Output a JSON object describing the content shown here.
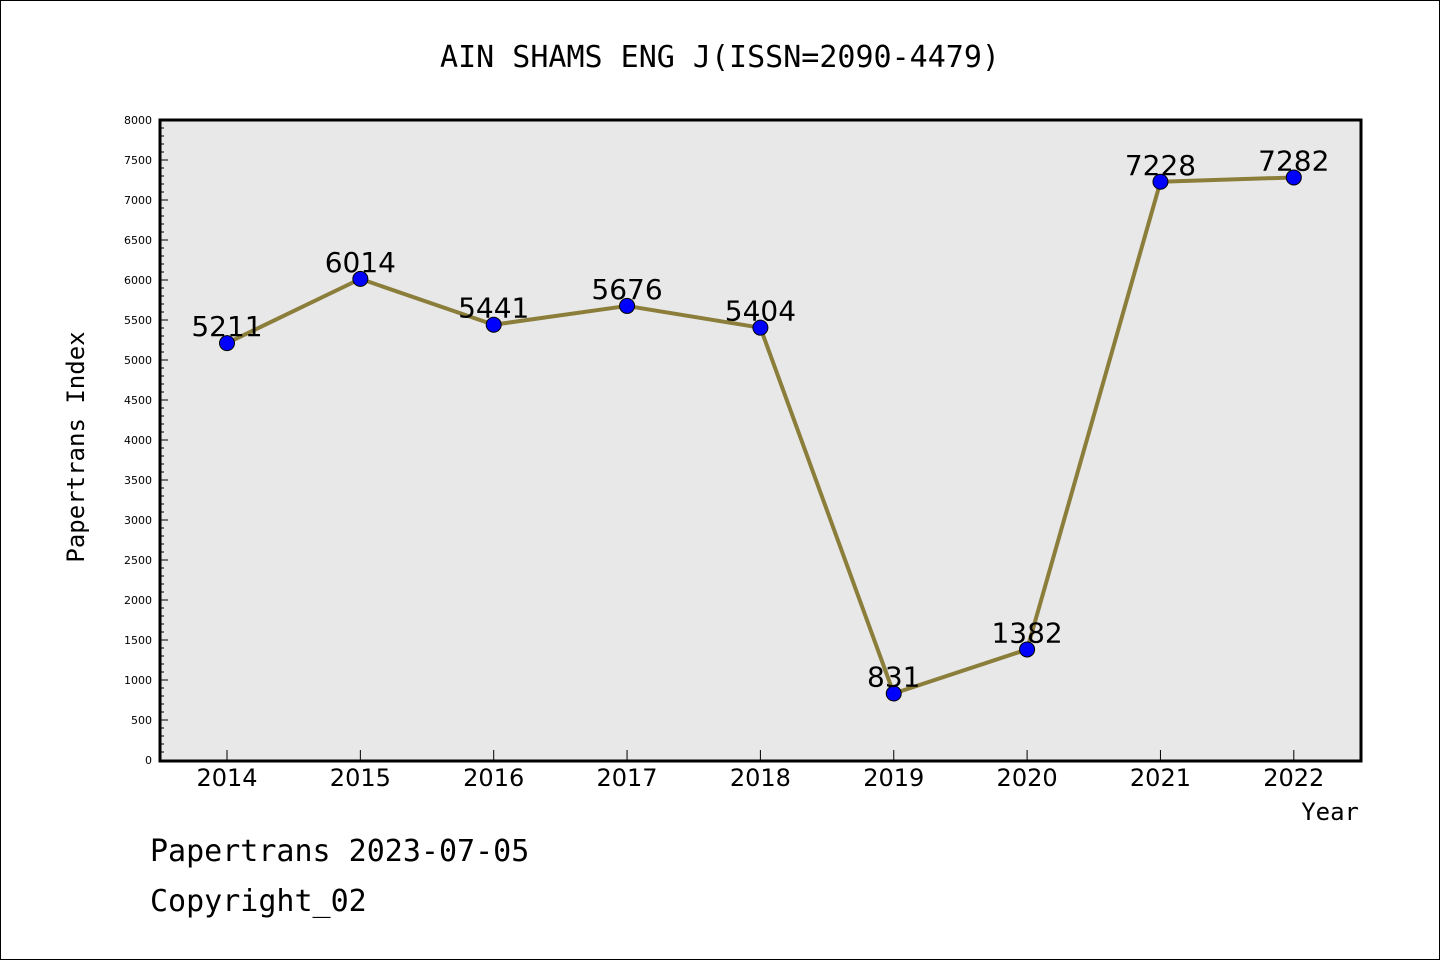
{
  "chart_data": {
    "type": "line",
    "title": "AIN SHAMS ENG J(ISSN=2090-4479)",
    "xlabel": "Year",
    "ylabel": "Papertrans Index",
    "categories": [
      "2014",
      "2015",
      "2016",
      "2017",
      "2018",
      "2019",
      "2020",
      "2021",
      "2022"
    ],
    "series": [
      {
        "values": [
          5211,
          6014,
          5441,
          5676,
          5404,
          831,
          1382,
          7228,
          7282
        ]
      }
    ],
    "data_labels": [
      "5211",
      "6014",
      "5441",
      "5676",
      "5404",
      "831",
      "1382",
      "7228",
      "7282"
    ],
    "ylim": [
      0,
      8000
    ],
    "y_ticks": [
      0,
      500,
      1000,
      1500,
      2000,
      2500,
      3000,
      3500,
      4000,
      4500,
      5000,
      5500,
      6000,
      6500,
      7000,
      7500,
      8000
    ],
    "grid": false,
    "legend": "none",
    "colors": {
      "line": "#8B7D3A",
      "marker": "#0000FF",
      "plot_background": "#E8E8E8",
      "axis": "#000000"
    }
  },
  "footer": {
    "line1": "Papertrans 2023-07-05",
    "line2": "Copyright_02"
  }
}
